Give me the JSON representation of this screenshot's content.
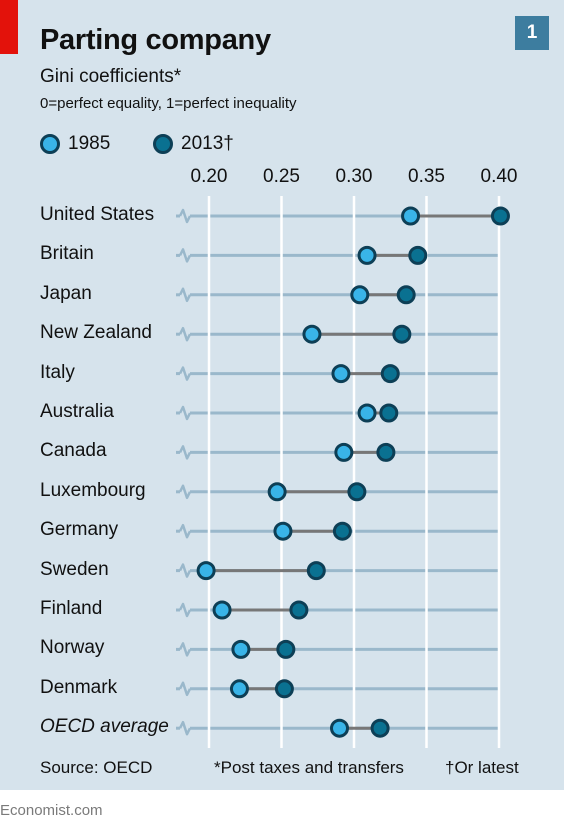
{
  "header": {
    "title": "Parting company",
    "badge": "1",
    "subtitle": "Gini coefficients*",
    "subtitle2": "0=perfect equality, 1=perfect inequality"
  },
  "legend": [
    {
      "label": "1985"
    },
    {
      "label": "2013†"
    }
  ],
  "footer": {
    "source": "Source: OECD",
    "note1": "*Post taxes and transfers",
    "note2": "†Or latest",
    "brand": "Economist.com"
  },
  "colors": {
    "panel": "#d6e3ec",
    "accent_red": "#e3120b",
    "badge": "#3d7d9f",
    "marker_1985": "#39b4e8",
    "marker_2013": "#0a7191",
    "marker_outline": "#0d3f56",
    "connector": "#777777",
    "row_line": "#9ab8cb"
  },
  "chart_data": {
    "type": "dot-plot",
    "title": "Parting company",
    "subtitle": "Gini coefficients*",
    "xlim": [
      0.2,
      0.4
    ],
    "xticks": [
      "0.20",
      "0.25",
      "0.30",
      "0.35",
      "0.40"
    ],
    "xtick_values": [
      0.2,
      0.25,
      0.3,
      0.35,
      0.4
    ],
    "grid": true,
    "legend_position": "top-left",
    "categories": [
      "United States",
      "Britain",
      "Japan",
      "New Zealand",
      "Italy",
      "Australia",
      "Canada",
      "Luxembourg",
      "Germany",
      "Sweden",
      "Finland",
      "Norway",
      "Denmark",
      "OECD average"
    ],
    "series": [
      {
        "name": "1985",
        "values": [
          0.339,
          0.309,
          0.304,
          0.271,
          0.291,
          0.309,
          0.293,
          0.247,
          0.251,
          0.198,
          0.209,
          0.222,
          0.221,
          0.29
        ]
      },
      {
        "name": "2013†",
        "values": [
          0.401,
          0.344,
          0.336,
          0.333,
          0.325,
          0.324,
          0.322,
          0.302,
          0.292,
          0.274,
          0.262,
          0.253,
          0.252,
          0.318
        ]
      }
    ]
  }
}
